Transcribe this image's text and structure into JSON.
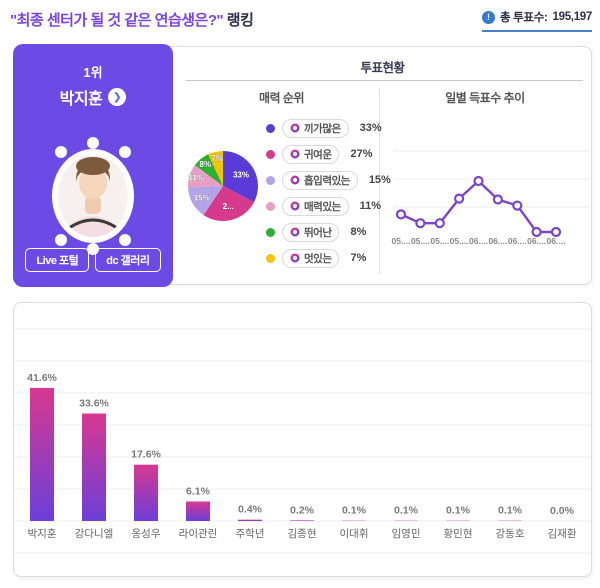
{
  "header": {
    "title_quoted": "\"최종 센터가 될 것 같은 연습생은?\"",
    "title_suffix": " 랭킹",
    "total_votes_label": "총 투표수:",
    "total_votes_value": "195,197",
    "accent_purple": "#7b45e0",
    "accent_blue": "#2e7bd6"
  },
  "icons": {
    "info_glyph": "!",
    "chevron_right_glyph": "❯"
  },
  "winner_card": {
    "rank": "1위",
    "name": "박지훈",
    "bg_color": "#6b4be4",
    "buttons": [
      {
        "label": "Live 포털"
      },
      {
        "label": "dc 갤러리"
      }
    ]
  },
  "vote_panel": {
    "title": "투표현황",
    "pie_section_title": "매력 순위",
    "line_section_title": "일별 득표수 추이"
  },
  "chart_data": [
    {
      "type": "pie",
      "title": "매력 순위",
      "unit": "%",
      "legend_position": "right",
      "slices": [
        {
          "label": "끼가많은",
          "value": 33,
          "color": "#5b3bd6",
          "slice_label": "33%"
        },
        {
          "label": "귀여운",
          "value": 27,
          "color": "#d63a8e",
          "slice_label": "2..."
        },
        {
          "label": "흡입력있는",
          "value": 15,
          "color": "#b2a4e8",
          "slice_label": "15%"
        },
        {
          "label": "매력있는",
          "value": 11,
          "color": "#e89fc6",
          "slice_label": "11%"
        },
        {
          "label": "뛰어난",
          "value": 8,
          "color": "#2fae2f",
          "slice_label": "8%"
        },
        {
          "label": "멋있는",
          "value": 7,
          "color": "#f5c400",
          "slice_label": "7%"
        }
      ]
    },
    {
      "type": "line",
      "title": "일별 득표수 추이",
      "x": [
        "05....",
        "05....",
        "05....",
        "05....",
        "06....",
        "06....",
        "06....",
        "06....",
        "06...."
      ],
      "values": [
        40,
        30,
        30,
        58,
        78,
        57,
        50,
        20,
        20
      ],
      "line_color": "#7c44cc",
      "grid": true,
      "y_axis_labels_visible": false
    },
    {
      "type": "bar",
      "categories": [
        "박지훈",
        "강다니엘",
        "옹성우",
        "라이관린",
        "주학년",
        "김종현",
        "이대휘",
        "임영민",
        "황민현",
        "강동호",
        "김재환"
      ],
      "values": [
        41.6,
        33.6,
        17.6,
        6.1,
        0.4,
        0.2,
        0.1,
        0.1,
        0.1,
        0.1,
        0.0
      ],
      "value_labels": [
        "41.6%",
        "33.6%",
        "17.6%",
        "6.1%",
        "0.4%",
        "0.2%",
        "0.1%",
        "0.1%",
        "0.1%",
        "0.1%",
        "0.0%"
      ],
      "bar_gradient_top": "#d83890",
      "bar_gradient_bottom": "#6b3fd8",
      "grid": true,
      "ylim": [
        0,
        60
      ]
    }
  ]
}
